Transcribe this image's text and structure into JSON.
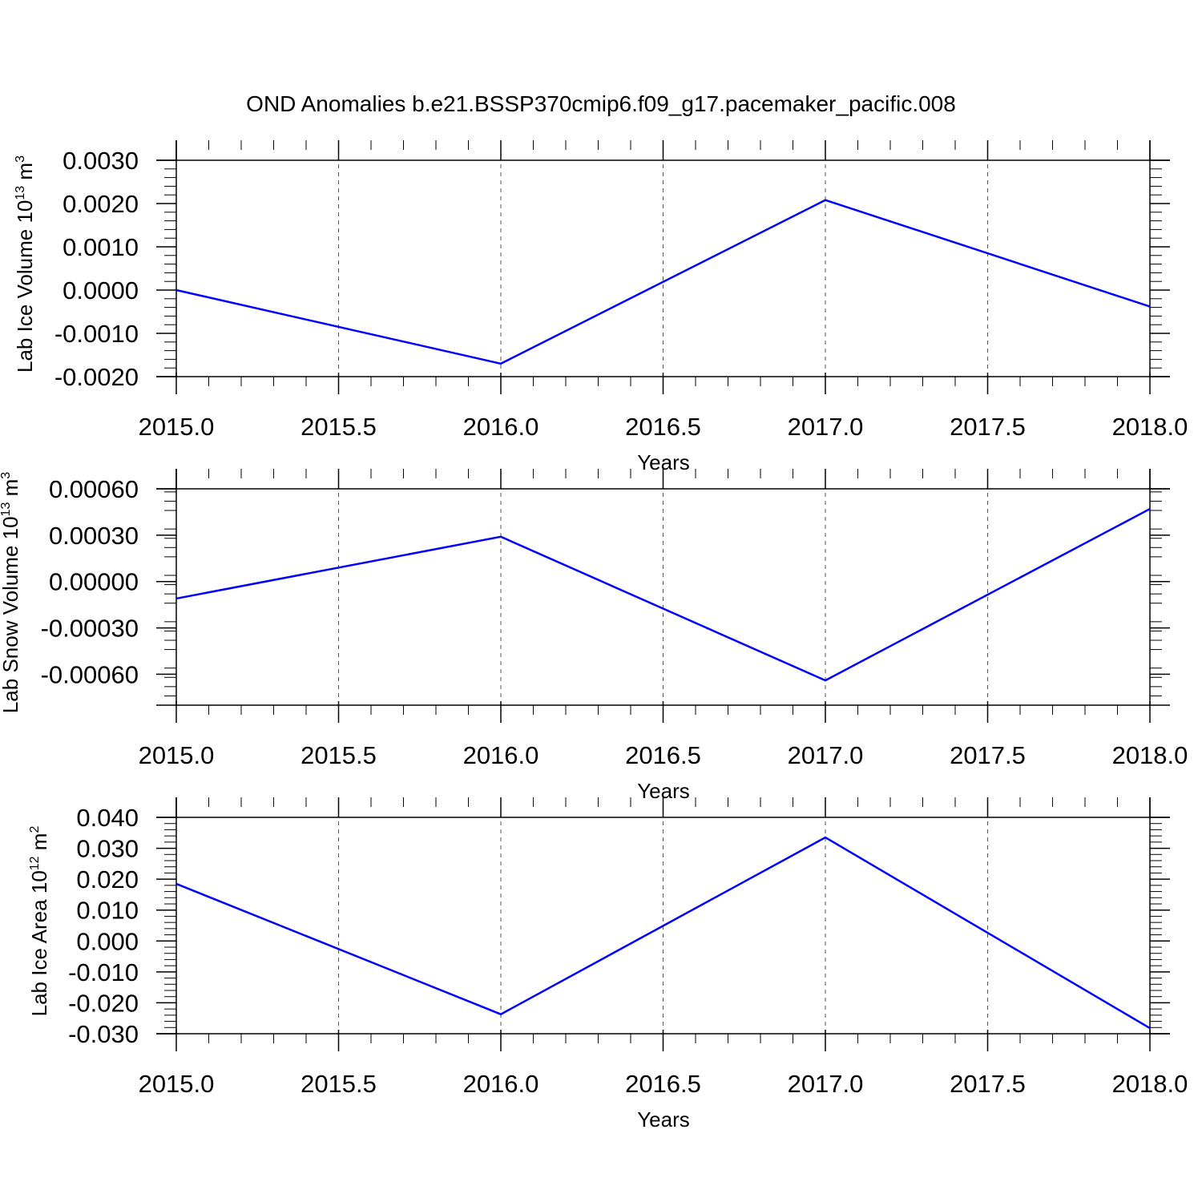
{
  "title": "OND Anomalies b.e21.BSSP370cmip6.f09_g17.pacemaker_pacific.008",
  "colors": {
    "series": "#0000ff",
    "axis": "#000000",
    "grid": "#555555"
  },
  "chart_data": [
    {
      "type": "line",
      "xlabel": "Years",
      "ylabel": {
        "base": "Lab Ice Volume 10",
        "exp": "13",
        "unit": " m",
        "unit_exp": "3"
      },
      "xlim": [
        2015.0,
        2018.0
      ],
      "ylim": [
        -0.002,
        0.003
      ],
      "x_ticks": [
        "2015.0",
        "2015.5",
        "2016.0",
        "2016.5",
        "2017.0",
        "2017.5",
        "2018.0"
      ],
      "y_ticks": [
        "0.0030",
        "0.0020",
        "0.0010",
        "0.0000",
        "-0.0010",
        "-0.0020"
      ],
      "y_tick_values": [
        0.003,
        0.002,
        0.001,
        0.0,
        -0.001,
        -0.002
      ],
      "grid": "vertical-dashed",
      "series": [
        {
          "x": [
            2015,
            2016,
            2017,
            2018
          ],
          "y": [
            0.0,
            -0.0017,
            0.00208,
            -0.00038
          ]
        }
      ]
    },
    {
      "type": "line",
      "xlabel": "Years",
      "ylabel": {
        "base": "Lab Snow Volume 10",
        "exp": "13",
        "unit": " m",
        "unit_exp": "3"
      },
      "xlim": [
        2015.0,
        2018.0
      ],
      "ylim": [
        -0.0008,
        0.0006
      ],
      "x_ticks": [
        "2015.0",
        "2015.5",
        "2016.0",
        "2016.5",
        "2017.0",
        "2017.5",
        "2018.0"
      ],
      "y_ticks": [
        "0.00060",
        "0.00030",
        "0.00000",
        "-0.00030",
        "-0.00060"
      ],
      "y_tick_values": [
        0.0006,
        0.0003,
        0.0,
        -0.0003,
        -0.0006
      ],
      "grid": "vertical-dashed",
      "series": [
        {
          "x": [
            2015,
            2016,
            2017,
            2018
          ],
          "y": [
            -0.00011,
            0.00029,
            -0.00064,
            0.00047
          ]
        }
      ]
    },
    {
      "type": "line",
      "xlabel": "Years",
      "ylabel": {
        "base": "Lab Ice Area 10",
        "exp": "12",
        "unit": " m",
        "unit_exp": "2"
      },
      "xlim": [
        2015.0,
        2018.0
      ],
      "ylim": [
        -0.03,
        0.04
      ],
      "x_ticks": [
        "2015.0",
        "2015.5",
        "2016.0",
        "2016.5",
        "2017.0",
        "2017.5",
        "2018.0"
      ],
      "y_ticks": [
        "0.040",
        "0.030",
        "0.020",
        "0.010",
        "0.000",
        "-0.010",
        "-0.020",
        "-0.030"
      ],
      "y_tick_values": [
        0.04,
        0.03,
        0.02,
        0.01,
        0.0,
        -0.01,
        -0.02,
        -0.03
      ],
      "grid": "vertical-dashed",
      "series": [
        {
          "x": [
            2015,
            2016,
            2017,
            2018
          ],
          "y": [
            0.0185,
            -0.0237,
            0.0335,
            -0.0282
          ]
        }
      ]
    }
  ]
}
